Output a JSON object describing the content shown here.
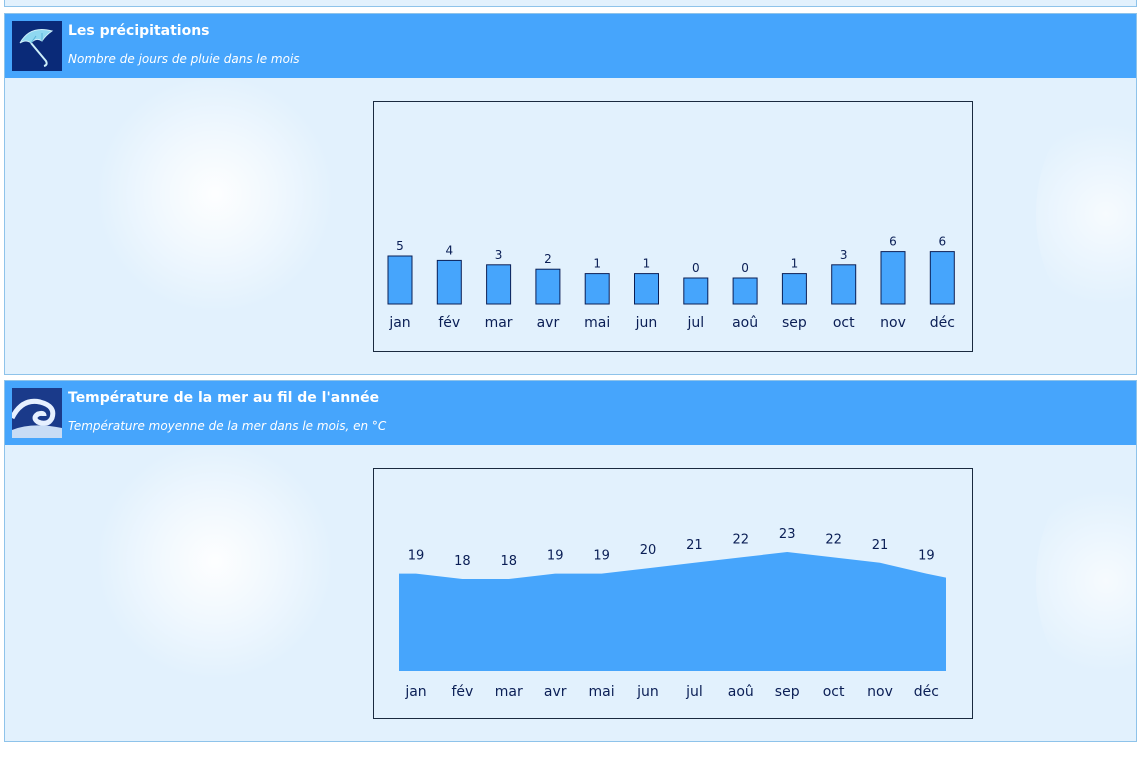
{
  "precipitations": {
    "title": "Les précipitations",
    "subtitle": "Nombre de jours de pluie dans le mois",
    "icon": "umbrella-icon"
  },
  "sea_temperature": {
    "title": "Température de la mer au fil de l'année",
    "subtitle": "Température moyenne de la mer dans le mois, en °C",
    "icon": "wave-icon"
  },
  "colors": {
    "header": "#46a5fc",
    "bar": "#46a5fc",
    "panel": "#e2f1fd",
    "axis_text": "#0a1e55"
  },
  "chart_data": [
    {
      "type": "bar",
      "title": "Les précipitations",
      "subtitle": "Nombre de jours de pluie dans le mois",
      "categories": [
        "jan",
        "fév",
        "mar",
        "avr",
        "mai",
        "jun",
        "jul",
        "aoû",
        "sep",
        "oct",
        "nov",
        "déc"
      ],
      "values": [
        5,
        4,
        3,
        2,
        1,
        1,
        0,
        0,
        1,
        3,
        6,
        6
      ],
      "grid": false
    },
    {
      "type": "area",
      "title": "Température de la mer au fil de l'année",
      "subtitle": "Température moyenne de la mer dans le mois, en °C",
      "categories": [
        "jan",
        "fév",
        "mar",
        "avr",
        "mai",
        "jun",
        "jul",
        "aoû",
        "sep",
        "oct",
        "nov",
        "déc"
      ],
      "values": [
        19,
        18,
        18,
        19,
        19,
        20,
        21,
        22,
        23,
        22,
        21,
        19
      ],
      "grid": false
    }
  ]
}
